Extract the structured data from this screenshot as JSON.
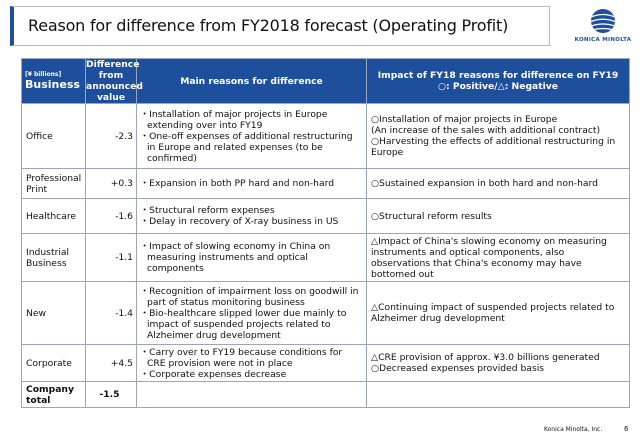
{
  "title": "Reason for difference from FY2018 forecast (Operating Profit)",
  "logo": {
    "text": "KONICA MINOLTA",
    "colors": {
      "primary": "#1e4f9c"
    }
  },
  "table": {
    "headers": {
      "unit": "[¥ billions]",
      "business": "Business",
      "difference": "Difference from announced value",
      "main_reasons": "Main reasons for difference",
      "impact_line1": "Impact of FY18 reasons for difference on FY19",
      "impact_line2": "○: Positive/△: Negative"
    },
    "rows": [
      {
        "business": "Office",
        "difference": "-2.3",
        "reasons": [
          "・Installation of major projects in Europe extending over into FY19",
          "・One-off expenses of additional restructuring in Europe and related expenses (to be confirmed)"
        ],
        "impact": [
          "○Installation of major projects in Europe",
          " (An increase of the sales with additional contract)",
          "○Harvesting the effects of additional restructuring in Europe"
        ]
      },
      {
        "business": "Professional Print",
        "difference": "+0.3",
        "reasons": [
          "・Expansion in both PP hard and non-hard"
        ],
        "impact": [
          "○Sustained expansion in both hard and non-hard"
        ]
      },
      {
        "business": "Healthcare",
        "difference": "-1.6",
        "reasons": [
          "・Structural reform expenses",
          "・Delay in recovery of X-ray business in US"
        ],
        "impact": [
          "○Structural reform results"
        ]
      },
      {
        "business": "Industrial Business",
        "difference": "-1.1",
        "reasons": [
          "・Impact of slowing economy in China on measuring instruments and optical components"
        ],
        "impact": [
          "△Impact of China's slowing economy on measuring instruments and optical components, also observations that China's economy may have bottomed out"
        ]
      },
      {
        "business": "New",
        "difference": "-1.4",
        "reasons": [
          "・Recognition of impairment loss on goodwill in part of status monitoring business",
          "・Bio-healthcare slipped lower due mainly to impact of suspended projects related to Alzheimer drug development"
        ],
        "impact": [
          "△Continuing impact of suspended projects related to Alzheimer drug development"
        ]
      },
      {
        "business": "Corporate",
        "difference": "+4.5",
        "reasons": [
          "・Carry over to FY19 because conditions for CRE provision were not in place",
          "・Corporate expenses decrease"
        ],
        "impact": [
          "△CRE provision of approx. ¥3.0 billions generated",
          "○Decreased expenses provided basis"
        ]
      }
    ],
    "total": {
      "business": "Company total",
      "difference": "-1.5"
    }
  },
  "footer": {
    "company": "Konica Minolta, Inc.",
    "page": "6"
  }
}
